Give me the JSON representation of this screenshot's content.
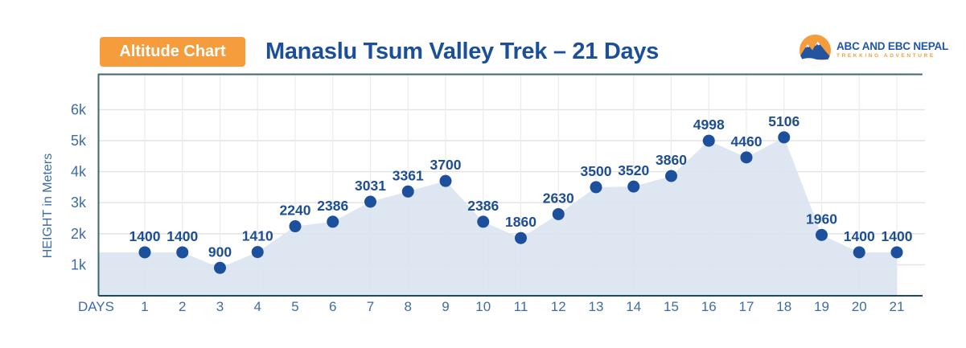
{
  "header": {
    "badge_label": "Altitude Chart",
    "title": "Manaslu Tsum Valley Trek – 21 Days",
    "logo": {
      "name": "ABC AND EBC NEPAL",
      "tagline": "TREKKING ADVENTURE"
    }
  },
  "colors": {
    "badge_bg": "#F59C3D",
    "badge_text": "#FFFFFF",
    "title_text": "#1B5098",
    "logo_text": "#2156A3",
    "logo_tagline": "#F59C3D",
    "logo_circle": "#F59C3D",
    "logo_mountain": "#24549E",
    "axis_tick_text": "#3E6CA8",
    "value_label_text": "#1D4E92",
    "point_fill": "#1C4F9C",
    "area_fill": "#D9E2EF",
    "h_grid": "#E2E2E2",
    "v_grid": "#EBEBEB",
    "plot_border": "#3A686B",
    "x_axis_line": "#1B4A66"
  },
  "chart_data": {
    "type": "area",
    "title": "Manaslu Tsum Valley Trek – 21 Days",
    "xlabel": "DAYS",
    "ylabel": "HEIGHT in Meters",
    "x": [
      1,
      2,
      3,
      4,
      5,
      6,
      7,
      8,
      9,
      10,
      11,
      12,
      13,
      14,
      15,
      16,
      17,
      18,
      19,
      20,
      21
    ],
    "values": [
      1400,
      1400,
      900,
      1410,
      2240,
      2386,
      3031,
      3361,
      3700,
      2386,
      1860,
      2630,
      3500,
      3520,
      3860,
      4998,
      4460,
      5106,
      1960,
      1400,
      1400
    ],
    "y_tick_labels": [
      "1k",
      "2k",
      "3k",
      "4k",
      "5k",
      "6k"
    ],
    "y_tick_values": [
      1000,
      2000,
      3000,
      4000,
      5000,
      6000
    ],
    "ylim": [
      0,
      7100
    ],
    "grid": true,
    "legend": false,
    "data_labels": true
  }
}
